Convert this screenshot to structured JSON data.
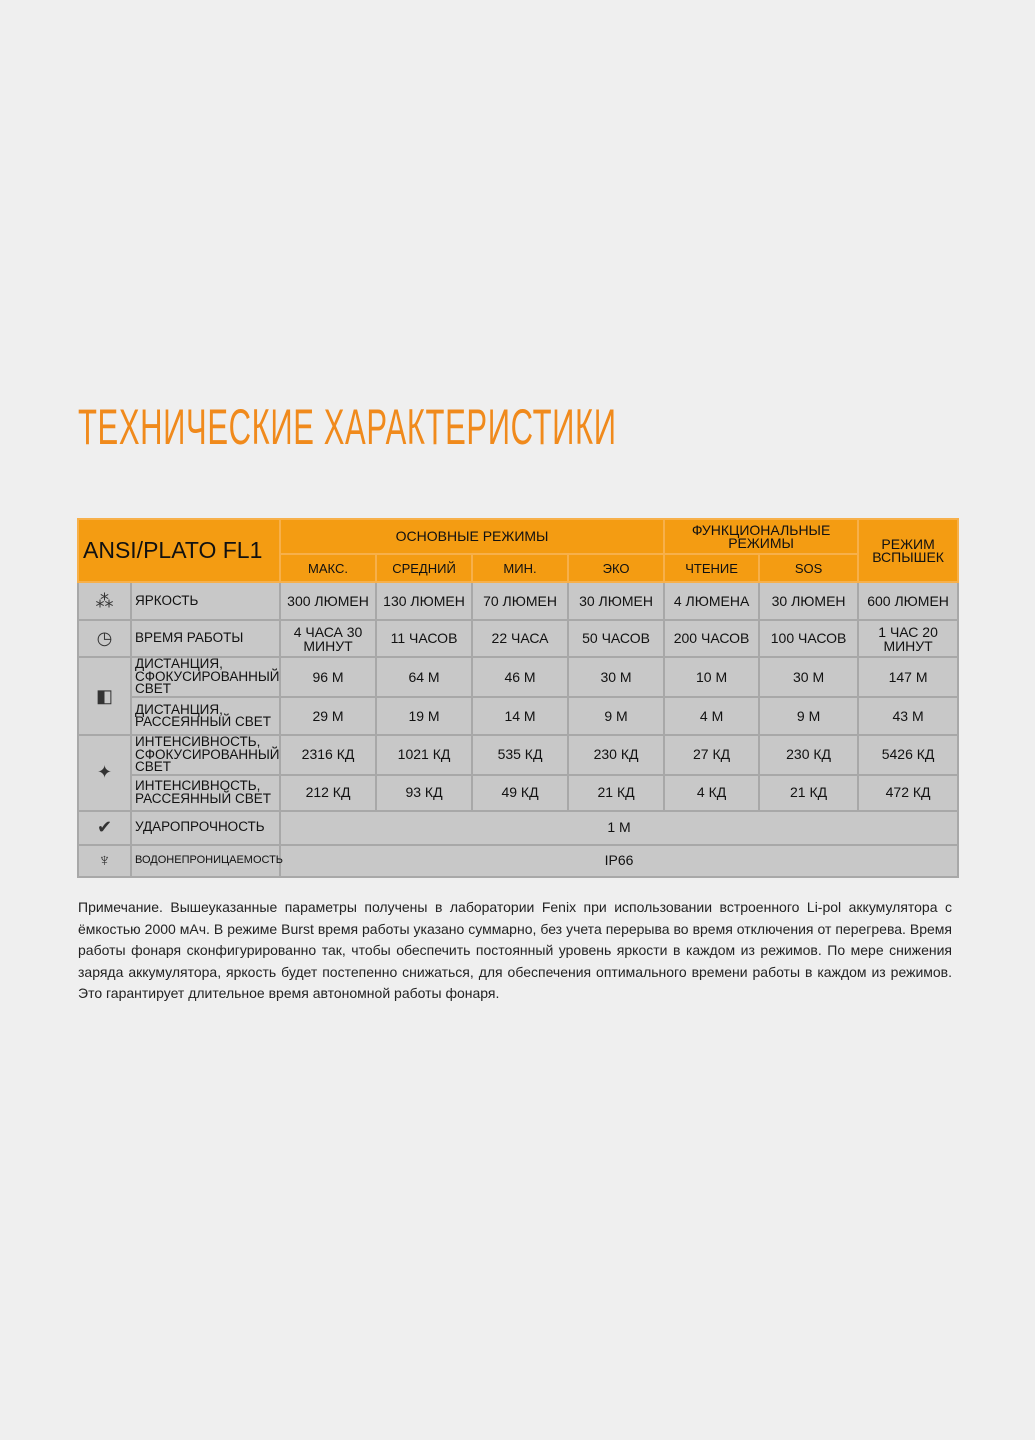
{
  "title": "ТЕХНИЧЕСКИЕ ХАРАКТЕРИСТИКИ",
  "table": {
    "brand": "ANSI/PLATO FL1",
    "group_main": "ОСНОВНЫЕ РЕЖИМЫ",
    "group_func": "ФУНКЦИОНАЛЬНЫЕ РЕЖИМЫ",
    "group_burst": "РЕЖИМ ВСПЫШЕК",
    "modes": [
      "МАКС.",
      "СРЕДНИЙ",
      "МИН.",
      "ЭКО",
      "ЧТЕНИЕ",
      "SOS"
    ],
    "rows": [
      {
        "icon": "brightness-icon",
        "label": "ЯРКОСТЬ",
        "values": [
          "300 ЛЮМЕН",
          "130 ЛЮМЕН",
          "70 ЛЮМЕН",
          "30 ЛЮМЕН",
          "4 ЛЮМЕНА",
          "30 ЛЮМЕН",
          "600 ЛЮМЕН"
        ]
      },
      {
        "icon": "clock-icon",
        "label": "ВРЕМЯ РАБОТЫ",
        "values": [
          "4 ЧАСА 30 МИНУТ",
          "11 ЧАСОВ",
          "22 ЧАСА",
          "50 ЧАСОВ",
          "200 ЧАСОВ",
          "100 ЧАСОВ",
          "1 ЧАС 20 МИНУТ"
        ]
      },
      {
        "icon": "beam-distance-icon",
        "label": "ДИСТАНЦИЯ, СФОКУСИРОВАННЫЙ СВЕТ",
        "values": [
          "96 М",
          "64 М",
          "46 М",
          "30 М",
          "10 М",
          "30 М",
          "147 М"
        ]
      },
      {
        "icon": "",
        "label": "ДИСТАНЦИЯ, РАССЕЯННЫЙ СВЕТ",
        "values": [
          "29 М",
          "19 М",
          "14 М",
          "9 М",
          "4 М",
          "9 М",
          "43 М"
        ]
      },
      {
        "icon": "intensity-icon",
        "label": "ИНТЕНСИВНОСТЬ, СФОКУСИРОВАННЫЙ СВЕТ",
        "values": [
          "2316 КД",
          "1021 КД",
          "535 КД",
          "230 КД",
          "27 КД",
          "230 КД",
          "5426 КД"
        ]
      },
      {
        "icon": "",
        "label": "ИНТЕНСИВНОСТЬ, РАССЕЯННЫЙ СВЕТ",
        "values": [
          "212 КД",
          "93 КД",
          "49 КД",
          "21 КД",
          "4 КД",
          "21 КД",
          "472 КД"
        ]
      }
    ],
    "impact": {
      "icon": "impact-icon",
      "label": "УДАРОПРОЧНОСТЬ",
      "value": "1 М"
    },
    "water": {
      "icon": "water-icon",
      "label": "ВОДОНЕПРОНИЦАЕМОСТЬ",
      "value": "IP66"
    }
  },
  "note": "Примечание. Вышеуказанные параметры получены в лаборатории Fenix при использовании встроенного Li-pol аккумулятора с ёмкостью 2000 мАч. В режиме Burst время работы указано суммарно, без учета перерыва во время отключения от перегрева. Время работы фонаря сконфигурированно так, чтобы обеспечить постоянный уровень яркости в каждом из режимов. По мере снижения заряда аккумулятора, яркость будет постепенно снижаться, для обеспечения оптимального времени работы в каждом из режимов. Это гарантирует длительное время автономной работы фонаря."
}
